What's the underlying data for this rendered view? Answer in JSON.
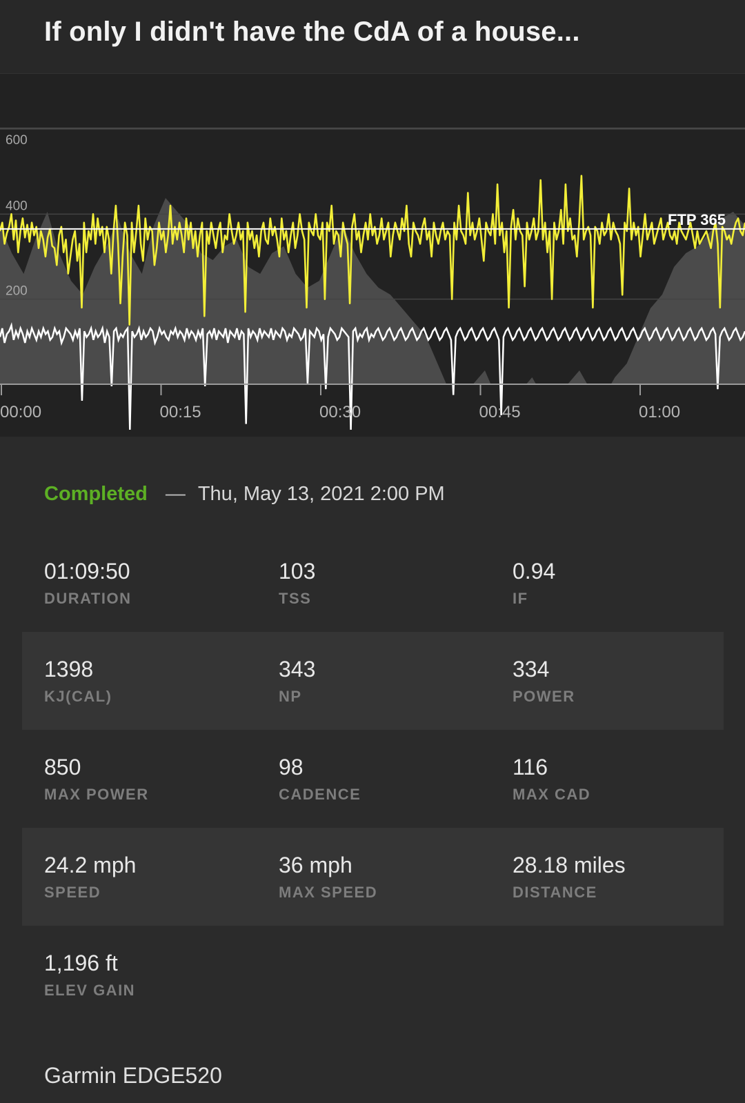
{
  "header": {
    "title": "If only I didn't have the CdA of a house..."
  },
  "chart_data": {
    "type": "line",
    "y_ticks": [
      {
        "value": 600,
        "label": "600"
      },
      {
        "value": 400,
        "label": "400"
      },
      {
        "value": 200,
        "label": "200"
      }
    ],
    "ylim": [
      0,
      600
    ],
    "x_ticks": [
      "00:00",
      "00:15",
      "00:30",
      "00:45",
      "01:00"
    ],
    "ftp": {
      "value": 365,
      "label": "FTP 365"
    },
    "power": [
      360,
      380,
      330,
      355,
      370,
      400,
      340,
      385,
      310,
      360,
      390,
      345,
      375,
      335,
      380,
      350,
      370,
      320,
      360,
      340,
      300,
      345,
      365,
      325,
      320,
      280,
      350,
      370,
      310,
      340,
      260,
      300,
      340,
      360,
      290,
      330,
      180,
      380,
      310,
      360,
      340,
      400,
      330,
      390,
      350,
      370,
      310,
      370,
      340,
      260,
      360,
      420,
      330,
      190,
      300,
      380,
      350,
      140,
      380,
      310,
      360,
      420,
      330,
      290,
      390,
      340,
      370,
      360,
      280,
      320,
      380,
      340,
      360,
      310,
      350,
      420,
      330,
      370,
      340,
      380,
      350,
      310,
      390,
      340,
      380,
      320,
      360,
      300,
      350,
      380,
      160,
      360,
      330,
      380,
      350,
      320,
      360,
      380,
      310,
      350,
      340,
      400,
      360,
      330,
      350,
      380,
      340,
      360,
      170,
      380,
      340,
      360,
      320,
      350,
      300,
      360,
      380,
      340,
      330,
      390,
      350,
      370,
      340,
      300,
      390,
      340,
      360,
      310,
      350,
      380,
      320,
      350,
      400,
      360,
      340,
      180,
      380,
      360,
      350,
      400,
      350,
      340,
      380,
      200,
      380,
      360,
      420,
      330,
      360,
      350,
      300,
      380,
      350,
      330,
      190,
      370,
      400,
      340,
      360,
      310,
      350,
      380,
      340,
      400,
      350,
      370,
      330,
      350,
      390,
      340,
      360,
      380,
      300,
      350,
      380,
      360,
      340,
      390,
      360,
      420,
      330,
      300,
      380,
      360,
      350,
      330,
      370,
      390,
      340,
      360,
      300,
      380,
      350,
      330,
      360,
      380,
      340,
      360,
      350,
      200,
      380,
      340,
      420,
      360,
      350,
      330,
      450,
      350,
      380,
      340,
      360,
      390,
      340,
      290,
      380,
      360,
      350,
      400,
      330,
      470,
      350,
      380,
      310,
      360,
      180,
      370,
      410,
      340,
      390,
      360,
      350,
      230,
      380,
      340,
      360,
      390,
      340,
      360,
      480,
      340,
      380,
      310,
      360,
      200,
      380,
      340,
      360,
      410,
      330,
      470,
      360,
      390,
      340,
      350,
      300,
      380,
      490,
      340,
      360,
      370,
      350,
      180,
      370,
      360,
      330,
      380,
      350,
      360,
      400,
      340,
      380,
      360,
      350,
      330,
      210,
      380,
      360,
      460,
      340,
      380,
      350,
      370,
      300,
      350,
      400,
      340,
      360,
      380,
      330,
      350,
      370,
      390,
      340,
      360,
      380,
      350,
      340,
      360,
      330,
      380,
      360,
      350,
      340,
      360,
      380,
      350,
      320,
      360,
      330,
      340,
      350,
      360,
      340,
      320,
      360,
      380,
      330,
      180,
      370,
      360,
      340,
      350,
      330,
      360,
      380,
      390,
      360,
      350,
      380
    ],
    "cadence": [
      92,
      95,
      90,
      93,
      94,
      96,
      91,
      94,
      92,
      95,
      93,
      90,
      94,
      92,
      95,
      93,
      91,
      94,
      92,
      95,
      93,
      94,
      91,
      92,
      95,
      93,
      94,
      90,
      92,
      95,
      94,
      93,
      91,
      94,
      92,
      95,
      70,
      94,
      92,
      93,
      95,
      91,
      94,
      92,
      93,
      95,
      90,
      94,
      92,
      75,
      94,
      95,
      91,
      93,
      92,
      94,
      95,
      60,
      94,
      92,
      93,
      95,
      91,
      94,
      92,
      93,
      95,
      94,
      90,
      92,
      95,
      93,
      94,
      92,
      91,
      94,
      93,
      95,
      92,
      94,
      93,
      91,
      95,
      92,
      94,
      93,
      91,
      94,
      92,
      95,
      75,
      93,
      94,
      92,
      95,
      91,
      94,
      93,
      92,
      95,
      90,
      94,
      93,
      92,
      95,
      91,
      94,
      93,
      62,
      95,
      92,
      94,
      93,
      91,
      95,
      92,
      94,
      93,
      92,
      95,
      91,
      94,
      93,
      92,
      95,
      94,
      91,
      93,
      92,
      95,
      94,
      93,
      91,
      92,
      95,
      76,
      94,
      93,
      92,
      95,
      94,
      91,
      93,
      74,
      92,
      95,
      94,
      93,
      91,
      92,
      95,
      94,
      93,
      92,
      60,
      94,
      95,
      91,
      93,
      92,
      94,
      95,
      91,
      93,
      92,
      94,
      95,
      93,
      91,
      92,
      94,
      95,
      93,
      91,
      92,
      94,
      95,
      93,
      91,
      92,
      94,
      95,
      93,
      91,
      92,
      94,
      95,
      93,
      91,
      92,
      94,
      95,
      93,
      91,
      92,
      94,
      95,
      93,
      91,
      72,
      92,
      94,
      95,
      93,
      91,
      92,
      94,
      95,
      93,
      91,
      92,
      94,
      95,
      93,
      91,
      92,
      94,
      95,
      93,
      91,
      65,
      92,
      94,
      95,
      93,
      91,
      92,
      94,
      95,
      93,
      91,
      92,
      94,
      95,
      93,
      91,
      92,
      94,
      95,
      93,
      91,
      92,
      94,
      95,
      93,
      91,
      92,
      94,
      95,
      93,
      91,
      92,
      94,
      95,
      93,
      91,
      92,
      94,
      95,
      93,
      91,
      92,
      94,
      95,
      93,
      91,
      92,
      94,
      95,
      93,
      91,
      92,
      94,
      95,
      93,
      91,
      92,
      94,
      95,
      93,
      91,
      92,
      94,
      95,
      93,
      91,
      92,
      94,
      95,
      93,
      91,
      92,
      94,
      95,
      93,
      91,
      92,
      94,
      95,
      93,
      91,
      92,
      94,
      95,
      93,
      91,
      92,
      94,
      95,
      93,
      91,
      92,
      94,
      95,
      93,
      74,
      92,
      94,
      95,
      93,
      91,
      92,
      94,
      95,
      93,
      91,
      92,
      94
    ]
  },
  "summary": {
    "status": "Completed",
    "separator": "—",
    "datetime": "Thu, May 13, 2021 2:00 PM"
  },
  "stats": [
    [
      {
        "value": "01:09:50",
        "label": "DURATION"
      },
      {
        "value": "103",
        "label": "TSS"
      },
      {
        "value": "0.94",
        "label": "IF"
      }
    ],
    [
      {
        "value": "1398",
        "label": "KJ(CAL)"
      },
      {
        "value": "343",
        "label": "NP"
      },
      {
        "value": "334",
        "label": "POWER"
      }
    ],
    [
      {
        "value": "850",
        "label": "MAX POWER"
      },
      {
        "value": "98",
        "label": "CADENCE"
      },
      {
        "value": "116",
        "label": "MAX CAD"
      }
    ],
    [
      {
        "value": "24.2 mph",
        "label": "SPEED"
      },
      {
        "value": "36 mph",
        "label": "MAX SPEED"
      },
      {
        "value": "28.18 miles",
        "label": "DISTANCE"
      }
    ],
    [
      {
        "value": "1,196 ft",
        "label": "ELEV GAIN"
      }
    ]
  ],
  "device": "Garmin EDGE520"
}
